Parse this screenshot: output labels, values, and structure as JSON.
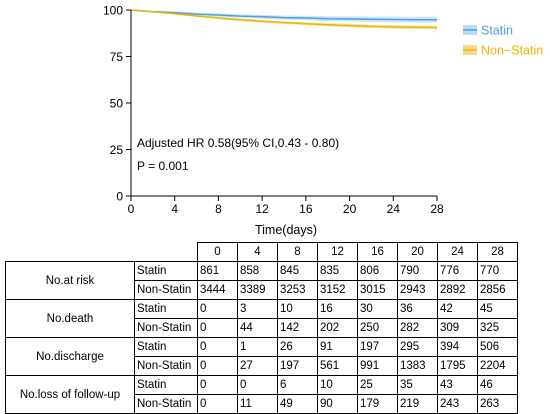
{
  "chart_data": {
    "type": "line",
    "xlabel": "Time(days)",
    "xlim": [
      0,
      28
    ],
    "ylim": [
      0,
      100
    ],
    "x_ticks": [
      0,
      4,
      8,
      12,
      16,
      20,
      24,
      28
    ],
    "y_ticks": [
      0,
      25,
      50,
      75,
      100
    ],
    "legend_position": "right",
    "annotations": [
      "Adjusted HR 0.58(95% CI,0.43 - 0.80)",
      "P = 0.001"
    ],
    "series": [
      {
        "name": "Statin",
        "color": "#4f9fdc",
        "band_color": "#bcdcf3",
        "x": [
          0,
          2,
          4,
          6,
          8,
          10,
          12,
          14,
          16,
          18,
          20,
          22,
          24,
          26,
          28
        ],
        "y": [
          100,
          99.1,
          98.6,
          97.8,
          97.3,
          96.7,
          96.4,
          95.9,
          95.7,
          95.3,
          95.2,
          95.0,
          94.9,
          94.8,
          94.8
        ],
        "lower": [
          100,
          98.7,
          98.0,
          97.1,
          96.5,
          95.8,
          95.4,
          94.8,
          94.5,
          94.0,
          93.8,
          93.5,
          93.3,
          93.2,
          93.2
        ],
        "upper": [
          100,
          99.5,
          99.2,
          98.5,
          98.1,
          97.6,
          97.4,
          97.0,
          96.9,
          96.6,
          96.6,
          96.5,
          96.5,
          96.4,
          96.4
        ]
      },
      {
        "name": "Non−Statin",
        "color": "#e8b800",
        "band_color": "#f3dc8c",
        "x": [
          0,
          2,
          4,
          6,
          8,
          10,
          12,
          14,
          16,
          18,
          20,
          22,
          24,
          26,
          28
        ],
        "y": [
          100,
          99.0,
          98.0,
          96.8,
          95.7,
          94.8,
          93.9,
          93.2,
          92.6,
          92.1,
          91.6,
          91.2,
          90.9,
          90.7,
          90.6
        ],
        "lower": [
          100,
          98.8,
          97.6,
          96.3,
          95.1,
          94.1,
          93.2,
          92.4,
          91.8,
          91.2,
          90.7,
          90.3,
          89.9,
          89.7,
          89.6
        ],
        "upper": [
          100,
          99.2,
          98.4,
          97.3,
          96.3,
          95.5,
          94.6,
          94.0,
          93.4,
          93.0,
          92.5,
          92.1,
          91.9,
          91.7,
          91.6
        ]
      }
    ]
  },
  "risk_table": {
    "days": [
      "0",
      "4",
      "8",
      "12",
      "16",
      "20",
      "24",
      "28"
    ],
    "groups": [
      {
        "label": "No.at risk",
        "rows": [
          {
            "group": "Statin",
            "values": [
              "861",
              "858",
              "845",
              "835",
              "806",
              "790",
              "776",
              "770"
            ]
          },
          {
            "group": "Non-Statin",
            "values": [
              "3444",
              "3389",
              "3253",
              "3152",
              "3015",
              "2943",
              "2892",
              "2856"
            ]
          }
        ]
      },
      {
        "label": "No.death",
        "rows": [
          {
            "group": "Statin",
            "values": [
              "0",
              "3",
              "10",
              "16",
              "30",
              "36",
              "42",
              "45"
            ]
          },
          {
            "group": "Non-Statin",
            "values": [
              "0",
              "44",
              "142",
              "202",
              "250",
              "282",
              "309",
              "325"
            ]
          }
        ]
      },
      {
        "label": "No.discharge",
        "rows": [
          {
            "group": "Statin",
            "values": [
              "0",
              "1",
              "26",
              "91",
              "197",
              "295",
              "394",
              "506"
            ]
          },
          {
            "group": "Non-Statin",
            "values": [
              "0",
              "27",
              "197",
              "561",
              "991",
              "1383",
              "1795",
              "2204"
            ]
          }
        ]
      },
      {
        "label": "No.loss of follow-up",
        "rows": [
          {
            "group": "Statin",
            "values": [
              "0",
              "0",
              "6",
              "10",
              "25",
              "35",
              "43",
              "46"
            ]
          },
          {
            "group": "Non-Statin",
            "values": [
              "0",
              "11",
              "49",
              "90",
              "179",
              "219",
              "243",
              "263"
            ]
          }
        ]
      }
    ]
  }
}
